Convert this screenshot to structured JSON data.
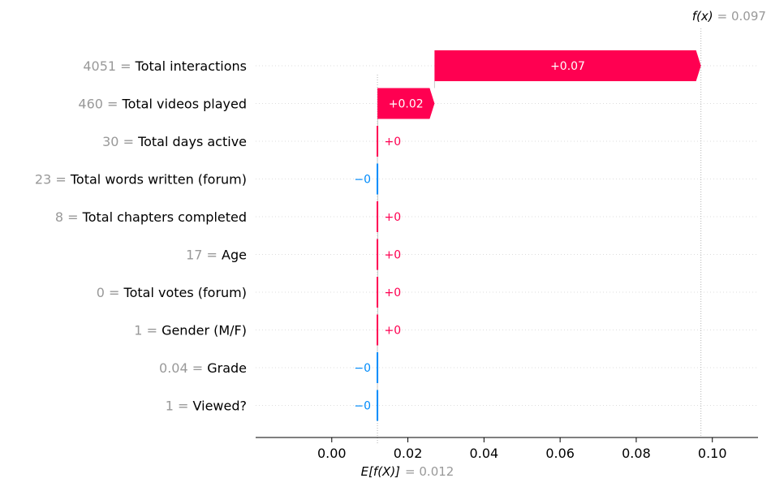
{
  "chart_data": {
    "type": "waterfall",
    "title": "",
    "xlabel": "",
    "ylabel": "",
    "xlim": [
      -0.02,
      0.112
    ],
    "xticks": [
      0.0,
      0.02,
      0.04,
      0.06,
      0.08,
      0.1
    ],
    "xtick_labels": [
      "0.00",
      "0.02",
      "0.04",
      "0.06",
      "0.08",
      "0.10"
    ],
    "base_value": 0.012,
    "output_value": 0.097,
    "fx_label": "f(x)",
    "fx_value_text": "= 0.097",
    "ex_label": "E[f(X)]",
    "ex_value_text": "= 0.012",
    "features": [
      {
        "value": "4051",
        "name": "Total interactions",
        "contribution": 0.07,
        "start": 0.027,
        "end": 0.097,
        "label": "+0.07",
        "direction": "positive"
      },
      {
        "value": "460",
        "name": "Total videos played",
        "contribution": 0.02,
        "start": 0.012,
        "end": 0.027,
        "label": "+0.02",
        "direction": "positive"
      },
      {
        "value": "30",
        "name": "Total days active",
        "contribution": 0.0001,
        "start": 0.012,
        "end": 0.0121,
        "label": "+0",
        "direction": "positive"
      },
      {
        "value": "23",
        "name": "Total words written (forum)",
        "contribution": -0.0001,
        "start": 0.0121,
        "end": 0.012,
        "label": "−0",
        "direction": "negative"
      },
      {
        "value": "8",
        "name": "Total chapters completed",
        "contribution": 0.0001,
        "start": 0.012,
        "end": 0.0121,
        "label": "+0",
        "direction": "positive"
      },
      {
        "value": "17",
        "name": "Age",
        "contribution": 0.0001,
        "start": 0.012,
        "end": 0.0121,
        "label": "+0",
        "direction": "positive"
      },
      {
        "value": "0",
        "name": "Total votes (forum)",
        "contribution": 0.0001,
        "start": 0.012,
        "end": 0.0121,
        "label": "+0",
        "direction": "positive"
      },
      {
        "value": "1",
        "name": "Gender (M/F)",
        "contribution": 0.0001,
        "start": 0.012,
        "end": 0.0121,
        "label": "+0",
        "direction": "positive"
      },
      {
        "value": "0.04",
        "name": "Grade",
        "contribution": -0.0001,
        "start": 0.0121,
        "end": 0.012,
        "label": "−0",
        "direction": "negative"
      },
      {
        "value": "1",
        "name": "Viewed?",
        "contribution": -0.0001,
        "start": 0.0121,
        "end": 0.012,
        "label": "−0",
        "direction": "negative"
      }
    ],
    "colors": {
      "positive": "#ff0051",
      "negative": "#008bfb",
      "value_text": "#999999",
      "grid": "#dddddd",
      "axis": "#000000"
    }
  }
}
